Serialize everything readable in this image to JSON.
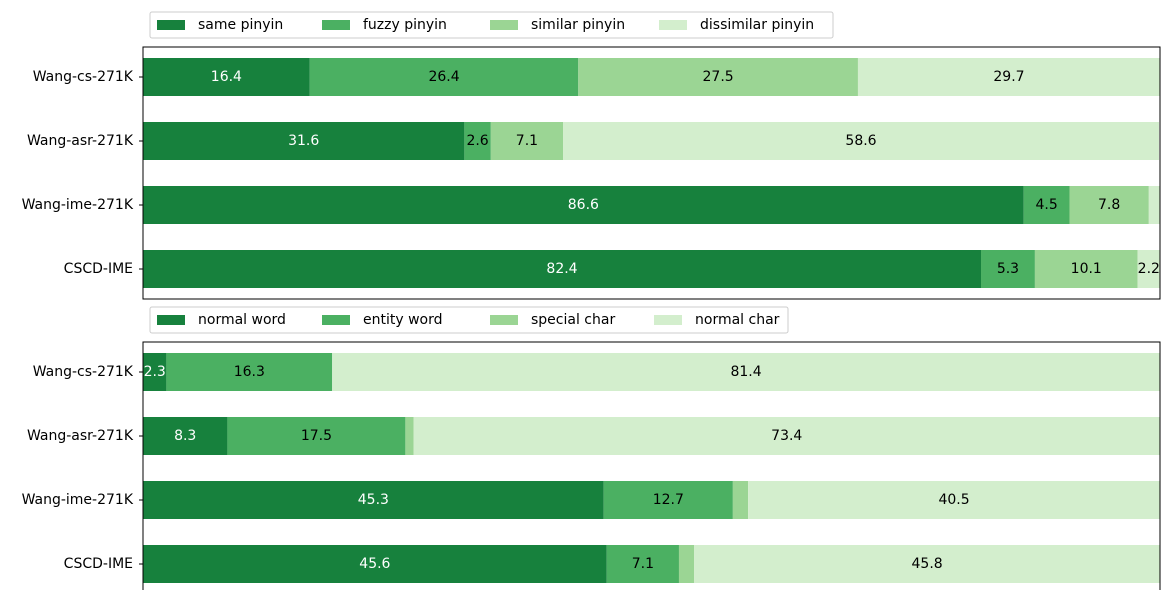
{
  "chart_data": [
    {
      "type": "stacked-barh",
      "categories": [
        "Wang-cs-271K",
        "Wang-asr-271K",
        "Wang-ime-271K",
        "CSCD-IME"
      ],
      "xlim": [
        0,
        100
      ],
      "series": [
        {
          "name": "same pinyin",
          "color": "#17813d",
          "values": [
            16.4,
            31.6,
            86.6,
            82.4
          ]
        },
        {
          "name": "fuzzy pinyin",
          "color": "#4bb062",
          "values": [
            26.4,
            2.6,
            4.5,
            5.3
          ]
        },
        {
          "name": "similar pinyin",
          "color": "#9bd594",
          "values": [
            27.5,
            7.1,
            7.8,
            10.1
          ]
        },
        {
          "name": "dissimilar pinyin",
          "color": "#d3eecd",
          "values": [
            29.7,
            58.6,
            1.1,
            2.2
          ]
        }
      ]
    },
    {
      "type": "stacked-barh",
      "categories": [
        "Wang-cs-271K",
        "Wang-asr-271K",
        "Wang-ime-271K",
        "CSCD-IME"
      ],
      "xlim": [
        0,
        100
      ],
      "series": [
        {
          "name": "normal word",
          "color": "#17813d",
          "values": [
            2.3,
            8.3,
            45.3,
            45.6
          ]
        },
        {
          "name": "entity word",
          "color": "#4bb062",
          "values": [
            16.3,
            17.5,
            12.7,
            7.1
          ]
        },
        {
          "name": "special char",
          "color": "#9bd594",
          "values": [
            0,
            0.8,
            1.5,
            1.5
          ]
        },
        {
          "name": "normal char",
          "color": "#d3eecd",
          "values": [
            81.4,
            73.4,
            40.5,
            45.8
          ]
        }
      ]
    }
  ]
}
